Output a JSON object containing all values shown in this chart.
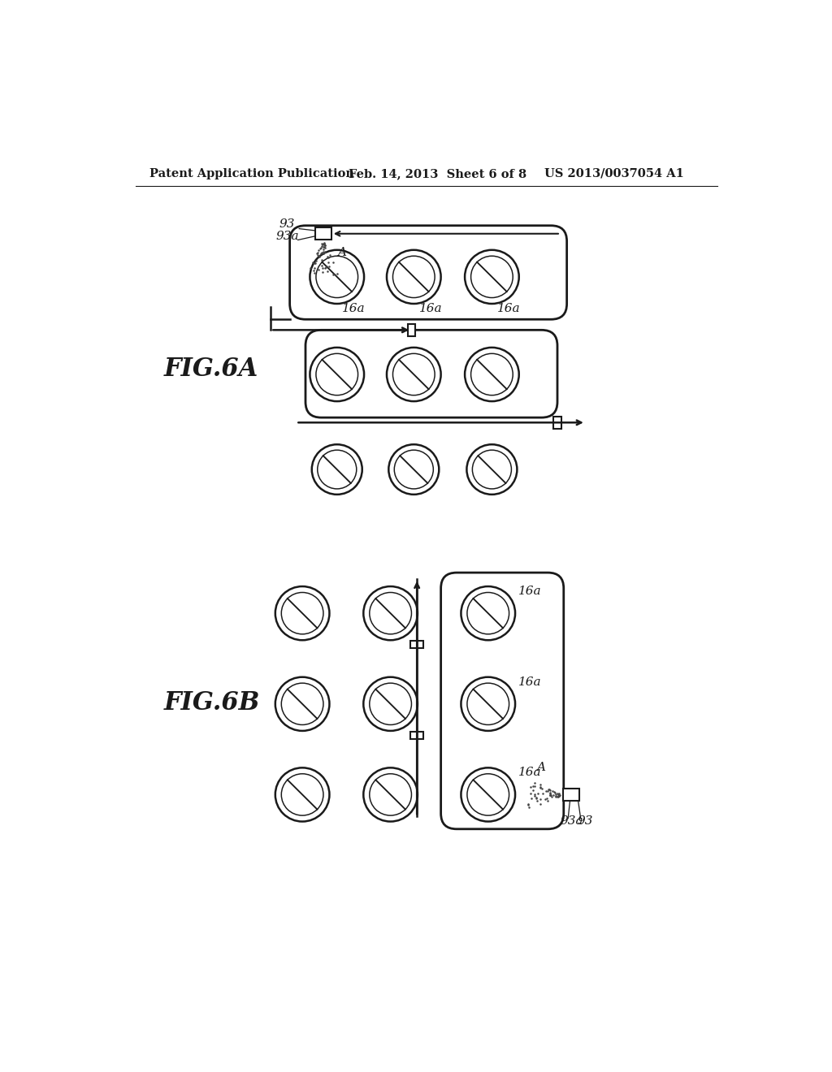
{
  "header_left": "Patent Application Publication",
  "header_mid": "Feb. 14, 2013  Sheet 6 of 8",
  "header_right": "US 2013/0037054 A1",
  "fig6a_label": "FIG.6A",
  "fig6b_label": "FIG.6B",
  "bg_color": "#ffffff",
  "line_color": "#1a1a1a"
}
